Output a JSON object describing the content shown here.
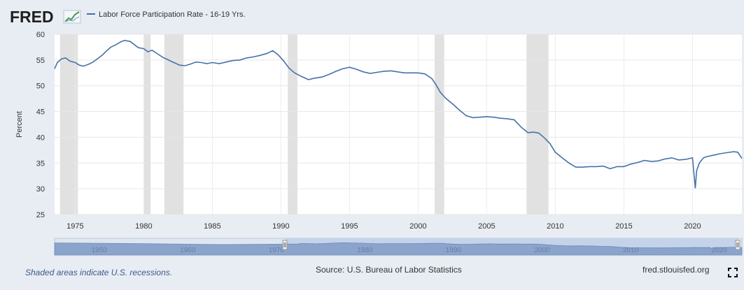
{
  "header": {
    "logo": "FRED",
    "series_label": "Labor Force Participation Rate - 16-19 Yrs."
  },
  "footer": {
    "note": "Shaded areas indicate U.S. recessions.",
    "source": "Source: U.S. Bureau of Labor Statistics",
    "site": "fred.stlouisfed.org"
  },
  "colors": {
    "line": "#4572a7",
    "recession": "#e1e1e1",
    "navigator_fill": "#8aa4cc",
    "navigator_selected": "#c4d3ea"
  },
  "navigator": {
    "tick_labels": [
      "1950",
      "1960",
      "1970",
      "1980",
      "1990",
      "2000",
      "2010",
      "2020"
    ]
  },
  "chart_data": {
    "type": "line",
    "title": "Labor Force Participation Rate - 16-19 Yrs.",
    "xlabel": "",
    "ylabel": "Percent",
    "xlim": [
      1973.5,
      2023.6
    ],
    "ylim": [
      25,
      60
    ],
    "yticks": [
      25,
      30,
      35,
      40,
      45,
      50,
      55,
      60
    ],
    "xticks": [
      1975,
      1980,
      1985,
      1990,
      1995,
      2000,
      2005,
      2010,
      2015,
      2020
    ],
    "recessions": [
      [
        1973.9,
        1975.2
      ],
      [
        1980.0,
        1980.5
      ],
      [
        1981.5,
        1982.9
      ],
      [
        1990.5,
        1991.2
      ],
      [
        2001.2,
        2001.9
      ],
      [
        2007.9,
        2009.5
      ]
    ],
    "series": [
      {
        "name": "Labor Force Participation Rate - 16-19 Yrs.",
        "x": [
          1973.5,
          1973.7,
          1974.0,
          1974.3,
          1974.6,
          1975.0,
          1975.3,
          1975.6,
          1976.0,
          1976.3,
          1976.6,
          1977.0,
          1977.3,
          1977.6,
          1978.0,
          1978.3,
          1978.6,
          1979.0,
          1979.3,
          1979.6,
          1980.0,
          1980.3,
          1980.6,
          1981.0,
          1981.4,
          1981.8,
          1982.2,
          1982.6,
          1983.0,
          1983.4,
          1983.8,
          1984.2,
          1984.6,
          1985.0,
          1985.5,
          1986.0,
          1986.5,
          1987.0,
          1987.5,
          1988.0,
          1988.5,
          1989.0,
          1989.4,
          1989.8,
          1990.2,
          1990.6,
          1991.0,
          1991.5,
          1992.0,
          1992.5,
          1993.0,
          1993.5,
          1994.0,
          1994.5,
          1995.0,
          1995.5,
          1996.0,
          1996.5,
          1997.0,
          1997.5,
          1998.0,
          1998.5,
          1999.0,
          1999.5,
          2000.0,
          2000.5,
          2001.0,
          2001.3,
          2001.6,
          2002.0,
          2002.5,
          2003.0,
          2003.5,
          2004.0,
          2004.5,
          2005.0,
          2005.5,
          2006.0,
          2006.5,
          2007.0,
          2007.5,
          2008.0,
          2008.4,
          2008.8,
          2009.2,
          2009.6,
          2010.0,
          2010.5,
          2011.0,
          2011.5,
          2012.0,
          2012.5,
          2013.0,
          2013.5,
          2014.0,
          2014.5,
          2015.0,
          2015.5,
          2016.0,
          2016.5,
          2017.0,
          2017.5,
          2018.0,
          2018.5,
          2019.0,
          2019.5,
          2020.0,
          2020.2,
          2020.3,
          2020.5,
          2020.8,
          2021.0,
          2021.5,
          2022.0,
          2022.5,
          2023.0,
          2023.3,
          2023.6
        ],
        "values": [
          53.3,
          54.5,
          55.2,
          55.4,
          54.8,
          54.5,
          54.0,
          53.8,
          54.2,
          54.6,
          55.2,
          56.0,
          56.8,
          57.5,
          58.0,
          58.5,
          58.8,
          58.6,
          58.0,
          57.4,
          57.2,
          56.6,
          56.9,
          56.2,
          55.5,
          55.0,
          54.5,
          54.0,
          53.9,
          54.2,
          54.6,
          54.5,
          54.3,
          54.5,
          54.3,
          54.6,
          54.9,
          55.0,
          55.4,
          55.6,
          55.9,
          56.3,
          56.8,
          56.0,
          54.8,
          53.4,
          52.5,
          51.8,
          51.2,
          51.5,
          51.7,
          52.2,
          52.8,
          53.3,
          53.6,
          53.2,
          52.7,
          52.4,
          52.6,
          52.8,
          52.9,
          52.7,
          52.5,
          52.5,
          52.5,
          52.3,
          51.4,
          50.2,
          48.8,
          47.6,
          46.5,
          45.3,
          44.2,
          43.8,
          43.9,
          44.0,
          43.9,
          43.7,
          43.6,
          43.4,
          42.0,
          40.9,
          41.0,
          40.8,
          39.9,
          38.8,
          37.1,
          36.0,
          35.0,
          34.2,
          34.2,
          34.3,
          34.3,
          34.4,
          33.9,
          34.3,
          34.3,
          34.8,
          35.1,
          35.5,
          35.3,
          35.4,
          35.8,
          36.0,
          35.6,
          35.7,
          36.0,
          30.1,
          33.5,
          35.0,
          36.0,
          36.2,
          36.5,
          36.8,
          37.0,
          37.2,
          37.1,
          35.9
        ]
      }
    ]
  }
}
